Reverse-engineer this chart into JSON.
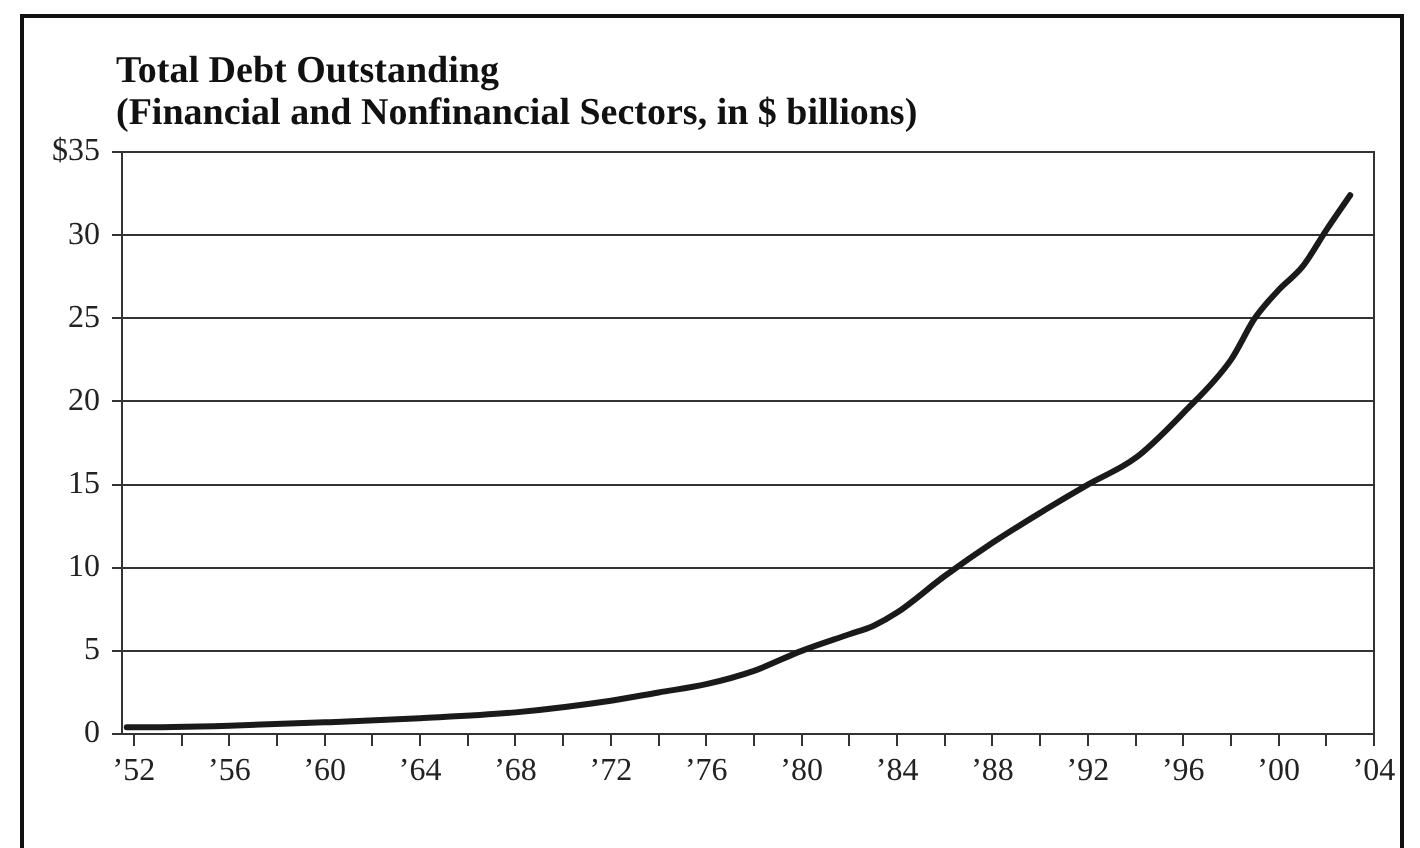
{
  "chart_data": {
    "type": "line",
    "title": "Total Debt Outstanding",
    "subtitle": "(Financial and Nonfinancial Sectors, in $ billions)",
    "x": [
      1951.7,
      1952,
      1956,
      1960,
      1964,
      1968,
      1972,
      1974,
      1976,
      1978,
      1980,
      1982,
      1983,
      1984,
      1986,
      1988,
      1990,
      1992,
      1994,
      1996,
      1998,
      1999,
      2000,
      2001,
      2002,
      2003
    ],
    "series": [
      {
        "color": "#1a1a1a",
        "values": [
          0.4,
          0.4,
          0.5,
          0.7,
          0.95,
          1.3,
          2.0,
          2.5,
          3.0,
          3.8,
          5.0,
          6.0,
          6.5,
          7.3,
          9.5,
          11.5,
          13.3,
          15.0,
          16.6,
          19.3,
          22.5,
          25.0,
          26.7,
          28.1,
          30.3,
          32.4
        ]
      }
    ],
    "xlim": [
      1951.5,
      2004
    ],
    "xticks": [
      {
        "value": 1952,
        "label": "’52"
      },
      {
        "value": 1954,
        "label": null
      },
      {
        "value": 1956,
        "label": "’56"
      },
      {
        "value": 1958,
        "label": null
      },
      {
        "value": 1960,
        "label": "’60"
      },
      {
        "value": 1962,
        "label": null
      },
      {
        "value": 1964,
        "label": "’64"
      },
      {
        "value": 1966,
        "label": null
      },
      {
        "value": 1968,
        "label": "’68"
      },
      {
        "value": 1970,
        "label": null
      },
      {
        "value": 1972,
        "label": "’72"
      },
      {
        "value": 1974,
        "label": null
      },
      {
        "value": 1976,
        "label": "’76"
      },
      {
        "value": 1978,
        "label": null
      },
      {
        "value": 1980,
        "label": "’80"
      },
      {
        "value": 1982,
        "label": null
      },
      {
        "value": 1984,
        "label": "’84"
      },
      {
        "value": 1986,
        "label": null
      },
      {
        "value": 1988,
        "label": "’88"
      },
      {
        "value": 1990,
        "label": null
      },
      {
        "value": 1992,
        "label": "’92"
      },
      {
        "value": 1994,
        "label": null
      },
      {
        "value": 1996,
        "label": "’96"
      },
      {
        "value": 1998,
        "label": null
      },
      {
        "value": 2000,
        "label": "’00"
      },
      {
        "value": 2002,
        "label": null
      },
      {
        "value": 2004,
        "label": "’04"
      }
    ],
    "ylim": [
      0,
      35
    ],
    "yticks": [
      0,
      5,
      10,
      15,
      20,
      25,
      30,
      {
        "value": 35,
        "label": "$35"
      }
    ],
    "grid": "y",
    "marker": "none",
    "line_style": "solid"
  }
}
